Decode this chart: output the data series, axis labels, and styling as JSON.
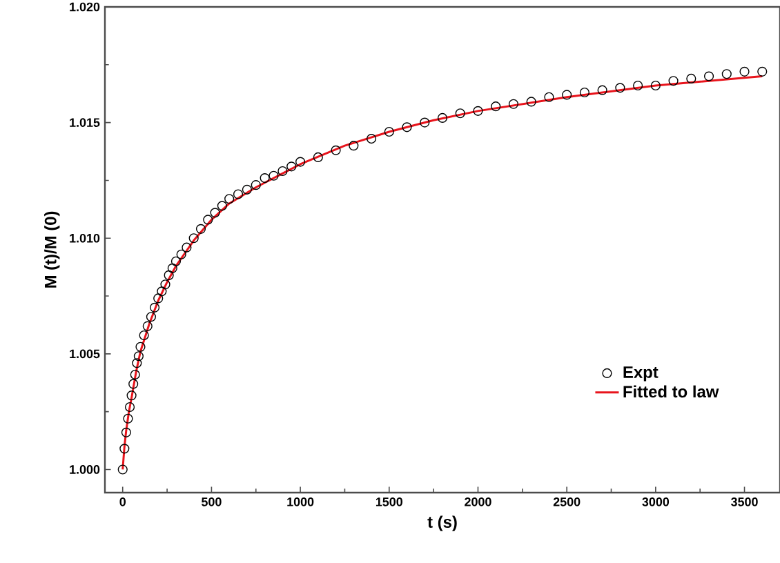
{
  "chart_data": {
    "type": "scatter",
    "xlabel": "t (s)",
    "ylabel": "M (t)/M (0)",
    "xlim": [
      -100,
      3700
    ],
    "ylim": [
      0.999,
      1.02
    ],
    "xticks": [
      0,
      500,
      1000,
      1500,
      2000,
      2500,
      3000,
      3500
    ],
    "yticks": [
      {
        "value": 1,
        "label": "1.000"
      },
      {
        "value": 1.005,
        "label": "1.005"
      },
      {
        "value": 1.01,
        "label": "1.010"
      },
      {
        "value": 1.015,
        "label": "1.015"
      },
      {
        "value": 1.02,
        "label": "1.020"
      }
    ],
    "grid": false,
    "legend": "bottom right",
    "series": [
      {
        "name": "Expt",
        "marker": "circle",
        "color": "#000000",
        "x": [
          0,
          10,
          20,
          30,
          40,
          50,
          60,
          70,
          80,
          90,
          100,
          120,
          140,
          160,
          180,
          200,
          220,
          240,
          260,
          280,
          300,
          330,
          360,
          400,
          440,
          480,
          520,
          560,
          600,
          650,
          700,
          750,
          800,
          850,
          900,
          950,
          1000,
          1100,
          1200,
          1300,
          1400,
          1500,
          1600,
          1700,
          1800,
          1900,
          2000,
          2100,
          2200,
          2300,
          2400,
          2500,
          2600,
          2700,
          2800,
          2900,
          3000,
          3100,
          3200,
          3300,
          3400,
          3500,
          3600
        ],
        "values": [
          1.0,
          1.0009,
          1.0016,
          1.0022,
          1.0027,
          1.0032,
          1.0037,
          1.0041,
          1.0046,
          1.0049,
          1.0053,
          1.0058,
          1.0062,
          1.0066,
          1.007,
          1.0074,
          1.0077,
          1.008,
          1.0084,
          1.0087,
          1.009,
          1.0093,
          1.0096,
          1.01,
          1.0104,
          1.0108,
          1.0111,
          1.0114,
          1.0117,
          1.0119,
          1.0121,
          1.0123,
          1.0126,
          1.0127,
          1.0129,
          1.0131,
          1.0133,
          1.0135,
          1.0138,
          1.014,
          1.0143,
          1.0146,
          1.0148,
          1.015,
          1.0152,
          1.0154,
          1.0155,
          1.0157,
          1.0158,
          1.0159,
          1.0161,
          1.0162,
          1.0163,
          1.0164,
          1.0165,
          1.0166,
          1.0166,
          1.0168,
          1.0169,
          1.017,
          1.0171,
          1.0172,
          1.0172
        ]
      },
      {
        "name": "Fitted to law",
        "type": "line",
        "line_style": "solid",
        "color": "#e8141c",
        "x": [
          0,
          10,
          20,
          35,
          50,
          75,
          100,
          150,
          200,
          250,
          300,
          400,
          500,
          600,
          750,
          900,
          1000,
          1250,
          1500,
          1750,
          2000,
          2500,
          3000,
          3600
        ],
        "values": [
          1.0,
          1.001,
          1.0017,
          1.0025,
          1.0031,
          1.0042,
          1.0051,
          1.0063,
          1.0073,
          1.0081,
          1.0088,
          1.0099,
          1.0108,
          1.0115,
          1.0122,
          1.0128,
          1.0132,
          1.014,
          1.0146,
          1.0151,
          1.0155,
          1.0161,
          1.0166,
          1.017
        ]
      }
    ]
  }
}
